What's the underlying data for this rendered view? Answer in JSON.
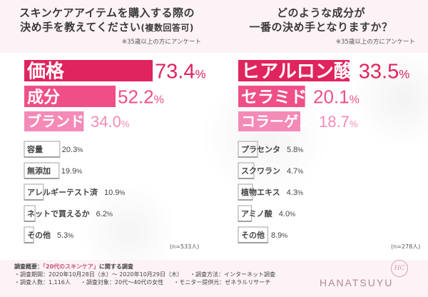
{
  "left": {
    "title_line1": "スキンケアアイテムを購入する際の",
    "title_line2": "決め手を教えてください",
    "title_line2_small": "(複数回答可)",
    "note": "※35歳以上の方にアンケート",
    "n_label": "(n=533人)"
  },
  "right": {
    "title_line1": "どのような成分が",
    "title_line2": "一番の決め手となりますか？",
    "note": "※35歳以上の方にアンケート",
    "n_label": "(n=278人)"
  },
  "colors": {
    "pink_dark": "#e0245e",
    "pink_mid": "#ef4f86",
    "pink_light": "#f48ab7",
    "gray_text": "#3a3a3a"
  },
  "chart_data": [
    {
      "type": "bar",
      "orientation": "horizontal",
      "title": "スキンケアアイテムを購入する際の決め手を教えてください(複数回答可)",
      "categories": [
        "価格",
        "成分",
        "ブランド",
        "容量",
        "無添加",
        "アレルギーテスト済",
        "ネットで買えるか",
        "その他"
      ],
      "values": [
        73.4,
        52.2,
        34.0,
        20.3,
        19.9,
        10.9,
        6.2,
        5.3
      ],
      "value_labels": [
        "73.4",
        "52.2",
        "34.0",
        "20.3",
        "19.9",
        "10.9",
        "6.2",
        "5.3"
      ],
      "unit": "%",
      "xlim": [
        0,
        73.4
      ]
    },
    {
      "type": "bar",
      "orientation": "horizontal",
      "title": "どのような成分が一番の決め手となりますか？",
      "categories": [
        "ヒアルロン酸",
        "セラミド",
        "コラーゲン",
        "プラセンタ",
        "スクワラン",
        "植物エキス",
        "アミノ酸",
        "その他"
      ],
      "values": [
        33.5,
        20.1,
        18.7,
        5.8,
        4.7,
        4.3,
        4.0,
        8.9
      ],
      "value_labels": [
        "33.5",
        "20.1",
        "18.7",
        "5.8",
        "4.7",
        "4.3",
        "4.0",
        "8.9"
      ],
      "unit": "%",
      "xlim": [
        0,
        33.5
      ]
    }
  ],
  "survey": {
    "title": "調査概要：",
    "title_quote": "「20代のスキンケア」",
    "title_tail": "に関する調査",
    "period": "・調査期間：2020年10月28日（水）～ 2020年10月29日（木）",
    "method": "・調査方法：インターネット調査",
    "people": "・調査人数：1,116人",
    "target": "・調査対象：20代～40代の女性",
    "monitor": "・モニター提供元：ゼネラルリサーチ"
  },
  "brand": {
    "name": "HANATSUYU",
    "logo_text": "HC"
  }
}
